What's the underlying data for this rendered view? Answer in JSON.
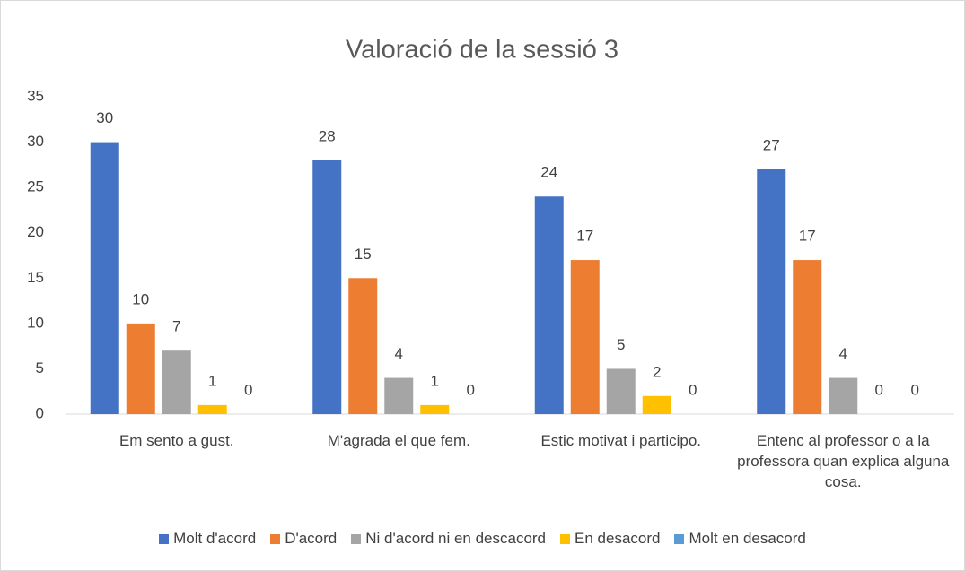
{
  "chart_data": {
    "type": "bar",
    "title": "Valoració de la sessió 3",
    "categories": [
      "Em sento a gust.",
      "M'agrada el que fem.",
      "Estic motivat i participo.",
      "Entenc al professor o a la professora quan explica alguna cosa."
    ],
    "series": [
      {
        "name": "Molt d'acord",
        "color": "#4472c4",
        "values": [
          30,
          28,
          24,
          27
        ]
      },
      {
        "name": "D'acord",
        "color": "#ed7d31",
        "values": [
          10,
          15,
          17,
          17
        ]
      },
      {
        "name": "Ni d'acord ni en descacord",
        "color": "#a5a5a5",
        "values": [
          7,
          4,
          5,
          4
        ]
      },
      {
        "name": "En desacord",
        "color": "#ffc000",
        "values": [
          1,
          1,
          2,
          0
        ]
      },
      {
        "name": "Molt en desacord",
        "color": "#5b9bd5",
        "values": [
          0,
          0,
          0,
          0
        ]
      }
    ],
    "ylim": [
      0,
      35
    ],
    "yticks": [
      0,
      5,
      10,
      15,
      20,
      25,
      30,
      35
    ],
    "grid": false,
    "legend": "bottom"
  }
}
